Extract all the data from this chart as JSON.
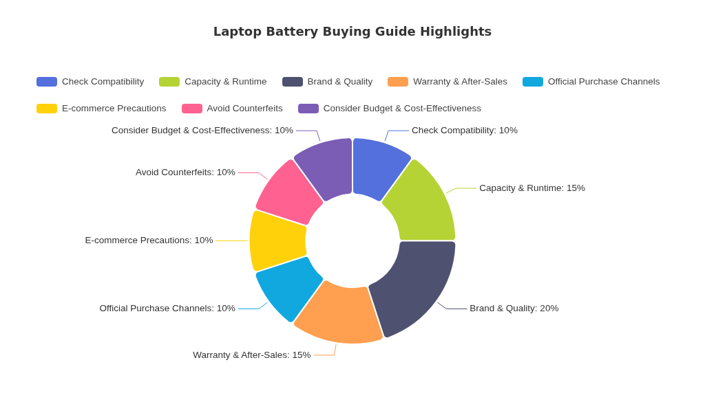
{
  "chart_data": {
    "type": "donut",
    "title": "Laptop Battery Buying Guide Highlights",
    "categories": [
      "Check Compatibility",
      "Capacity & Runtime",
      "Brand & Quality",
      "Warranty & After-Sales",
      "Official Purchase Channels",
      "E-commerce Precautions",
      "Avoid Counterfeits",
      "Consider Budget & Cost-Effectiveness"
    ],
    "values": [
      10,
      15,
      20,
      15,
      10,
      10,
      10,
      10
    ],
    "value_labels": [
      "Check Compatibility: 10%",
      "Capacity & Runtime: 15%",
      "Brand & Quality: 20%",
      "Warranty & After-Sales: 15%",
      "Official Purchase Channels: 10%",
      "E-commerce Precautions: 10%",
      "Avoid Counterfeits: 10%",
      "Consider Budget & Cost-Effectiveness: 10%"
    ],
    "colors": [
      "#5470dd",
      "#b5d334",
      "#4f5171",
      "#ff9f4f",
      "#10a8df",
      "#ffd10a",
      "#ff6190",
      "#7b5db6"
    ],
    "legend": "top left"
  }
}
